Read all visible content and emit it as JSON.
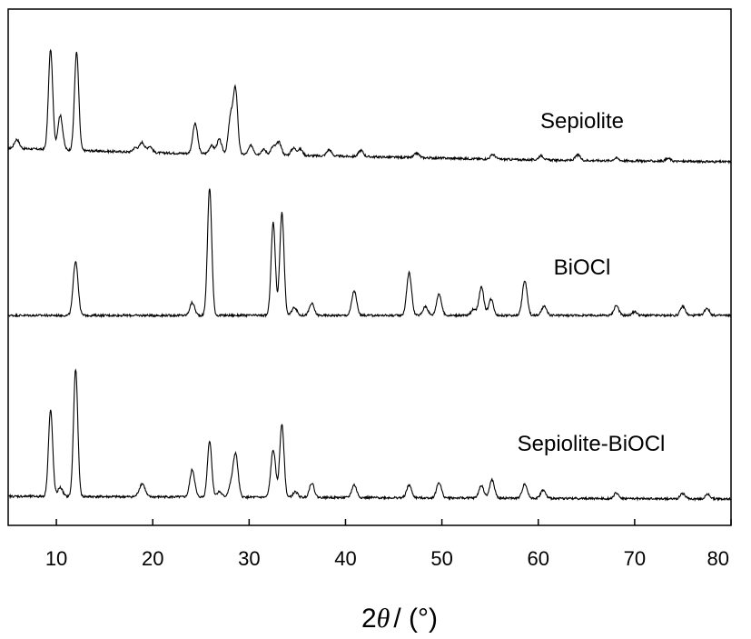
{
  "chart_data": {
    "type": "line",
    "title": "",
    "xlabel": {
      "prefix": "2",
      "symbol": "θ",
      "unit": "/ (°)"
    },
    "ylabel": "",
    "xlim": [
      5,
      80
    ],
    "xticks": [
      10,
      20,
      30,
      40,
      50,
      60,
      70,
      80
    ],
    "yticks_shown": false,
    "grid": false,
    "legend": "none",
    "colors": {
      "line": "#000000",
      "axis": "#000000"
    },
    "series": [
      {
        "name": "Sepiolite",
        "baseline_trend": [
          [
            5,
            18
          ],
          [
            20,
            13
          ],
          [
            40,
            9
          ],
          [
            60,
            5
          ],
          [
            80,
            3
          ]
        ],
        "peaks": [
          {
            "x": 5.9,
            "h": 10
          },
          {
            "x": 9.4,
            "h": 110
          },
          {
            "x": 10.4,
            "h": 38
          },
          {
            "x": 12.1,
            "h": 108
          },
          {
            "x": 18.2,
            "h": 5
          },
          {
            "x": 18.9,
            "h": 11
          },
          {
            "x": 19.7,
            "h": 7
          },
          {
            "x": 24.4,
            "h": 33
          },
          {
            "x": 26.1,
            "h": 9
          },
          {
            "x": 26.9,
            "h": 16
          },
          {
            "x": 28.1,
            "h": 42
          },
          {
            "x": 28.6,
            "h": 68
          },
          {
            "x": 30.2,
            "h": 10
          },
          {
            "x": 31.5,
            "h": 6
          },
          {
            "x": 32.5,
            "h": 9
          },
          {
            "x": 33.1,
            "h": 14
          },
          {
            "x": 34.6,
            "h": 8
          },
          {
            "x": 35.3,
            "h": 7
          },
          {
            "x": 38.3,
            "h": 7
          },
          {
            "x": 41.6,
            "h": 7
          },
          {
            "x": 47.4,
            "h": 5
          },
          {
            "x": 55.3,
            "h": 5
          },
          {
            "x": 60.3,
            "h": 5
          },
          {
            "x": 64.1,
            "h": 6
          },
          {
            "x": 68.1,
            "h": 3
          },
          {
            "x": 73.5,
            "h": 3
          }
        ]
      },
      {
        "name": "BiOCl",
        "baseline_trend": [
          [
            5,
            3
          ],
          [
            80,
            3
          ]
        ],
        "peaks": [
          {
            "x": 12.0,
            "h": 60
          },
          {
            "x": 24.1,
            "h": 14
          },
          {
            "x": 25.9,
            "h": 140
          },
          {
            "x": 32.5,
            "h": 102
          },
          {
            "x": 33.4,
            "h": 113
          },
          {
            "x": 34.7,
            "h": 9
          },
          {
            "x": 36.5,
            "h": 13
          },
          {
            "x": 40.9,
            "h": 27
          },
          {
            "x": 46.6,
            "h": 47
          },
          {
            "x": 48.3,
            "h": 10
          },
          {
            "x": 49.7,
            "h": 24
          },
          {
            "x": 53.3,
            "h": 7
          },
          {
            "x": 54.1,
            "h": 31
          },
          {
            "x": 55.1,
            "h": 18
          },
          {
            "x": 58.6,
            "h": 38
          },
          {
            "x": 60.6,
            "h": 10
          },
          {
            "x": 68.1,
            "h": 11
          },
          {
            "x": 70.0,
            "h": 4
          },
          {
            "x": 75.0,
            "h": 10
          },
          {
            "x": 77.5,
            "h": 8
          }
        ]
      },
      {
        "name": "Sepiolite-BiOCl",
        "baseline_trend": [
          [
            5,
            6
          ],
          [
            80,
            3
          ]
        ],
        "peaks": [
          {
            "x": 9.4,
            "h": 95
          },
          {
            "x": 10.4,
            "h": 10
          },
          {
            "x": 12.0,
            "h": 140
          },
          {
            "x": 18.7,
            "h": 6
          },
          {
            "x": 19.0,
            "h": 11
          },
          {
            "x": 24.1,
            "h": 30
          },
          {
            "x": 25.9,
            "h": 62
          },
          {
            "x": 26.9,
            "h": 6
          },
          {
            "x": 28.1,
            "h": 12
          },
          {
            "x": 28.6,
            "h": 47
          },
          {
            "x": 32.5,
            "h": 52
          },
          {
            "x": 33.4,
            "h": 81
          },
          {
            "x": 34.8,
            "h": 6
          },
          {
            "x": 36.5,
            "h": 16
          },
          {
            "x": 40.9,
            "h": 14
          },
          {
            "x": 46.6,
            "h": 14
          },
          {
            "x": 49.7,
            "h": 17
          },
          {
            "x": 54.1,
            "h": 14
          },
          {
            "x": 55.2,
            "h": 20
          },
          {
            "x": 58.6,
            "h": 16
          },
          {
            "x": 60.5,
            "h": 9
          },
          {
            "x": 68.1,
            "h": 6
          },
          {
            "x": 75.0,
            "h": 6
          },
          {
            "x": 77.6,
            "h": 5
          }
        ]
      }
    ]
  }
}
